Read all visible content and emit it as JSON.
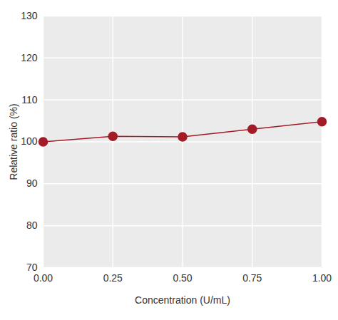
{
  "chart_data": {
    "type": "line",
    "x_label": "Concentration (U/mL)",
    "y_label": "Relative ratio (%)",
    "x": [
      0,
      0.25,
      0.5,
      0.75,
      1
    ],
    "values": [
      100,
      101.3,
      101.2,
      103,
      104.8
    ],
    "color": "#a31b26",
    "marker": "circle",
    "line_style": "solid",
    "xlim": [
      0,
      1
    ],
    "xticks": [
      {
        "value": 0,
        "label": "0.00"
      },
      {
        "value": 0.25,
        "label": "0.25"
      },
      {
        "value": 0.5,
        "label": "0.50"
      },
      {
        "value": 0.75,
        "label": "0.75"
      },
      {
        "value": 1,
        "label": "1.00"
      }
    ],
    "ylim": [
      70,
      130
    ],
    "yticks": [
      70,
      80,
      90,
      100,
      110,
      120,
      130
    ],
    "grid": true
  }
}
